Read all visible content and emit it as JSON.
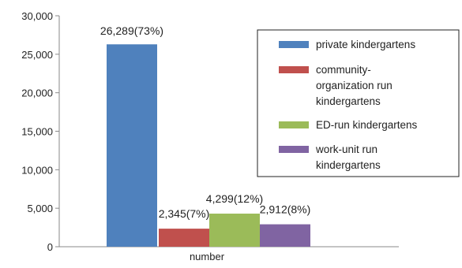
{
  "chart_data": {
    "type": "bar",
    "categories": [
      "number"
    ],
    "series": [
      {
        "name": "private kindergartens",
        "values": [
          26289
        ],
        "label": "26,289(73%)",
        "color": "#4f81bd"
      },
      {
        "name": "community-organization run kindergartens",
        "values": [
          2345
        ],
        "label": "2,345(7%)",
        "color": "#c0504d"
      },
      {
        "name": "ED-run kindergartens",
        "values": [
          4299
        ],
        "label": "4,299(12%)",
        "color": "#9bbb59"
      },
      {
        "name": "work-unit run kindergartens",
        "values": [
          2912
        ],
        "label": "2,912(8%)",
        "color": "#8064a2"
      }
    ],
    "yticks": [
      "0",
      "5,000",
      "10,000",
      "15,000",
      "20,000",
      "25,000",
      "30,000"
    ],
    "ylim": [
      0,
      30000
    ],
    "grid": false,
    "legend_position": "right"
  }
}
